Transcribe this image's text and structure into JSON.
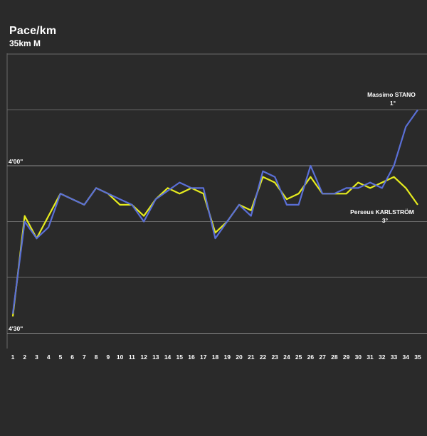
{
  "header": {
    "title": "Pace/km",
    "subtitle": "35km M"
  },
  "colors": {
    "background": "#2a2a2a",
    "grid": "#6a6a6a",
    "stano": "#5a6fd6",
    "karlstrom": "#e6ec1e"
  },
  "chart_data": {
    "type": "line",
    "title": "Pace/km",
    "subtitle": "35km M",
    "x": [
      1,
      2,
      3,
      4,
      5,
      6,
      7,
      8,
      9,
      10,
      11,
      12,
      13,
      14,
      15,
      16,
      17,
      18,
      19,
      20,
      21,
      22,
      23,
      24,
      25,
      26,
      27,
      28,
      29,
      30,
      31,
      32,
      33,
      34,
      35
    ],
    "xlabel": "",
    "ylabel": "",
    "y_unit": "seconds per km",
    "ylim_seconds": [
      240,
      270
    ],
    "y_reversed": true,
    "ytick_labels": [
      {
        "value": 240,
        "label": "4'00\""
      },
      {
        "value": 270,
        "label": "4'30\""
      }
    ],
    "grid": true,
    "series": [
      {
        "name": "Massimo STANO",
        "annotation": "1°",
        "values": [
          266.5,
          250.0,
          253.0,
          251.0,
          245.0,
          246.0,
          247.0,
          244.0,
          245.0,
          246.0,
          247.0,
          250.0,
          246.0,
          244.5,
          243.0,
          244.0,
          244.0,
          253.0,
          250.0,
          247.0,
          249.0,
          241.0,
          242.0,
          247.0,
          247.0,
          240.0,
          245.0,
          245.0,
          244.0,
          244.0,
          243.0,
          244.0,
          240.0,
          233.0,
          230.0
        ]
      },
      {
        "name": "Perseus KARLSTRÖM",
        "annotation": "3°",
        "values": [
          267.0,
          249.0,
          253.0,
          249.0,
          245.0,
          246.0,
          247.0,
          244.0,
          245.0,
          247.0,
          247.0,
          249.0,
          246.0,
          244.0,
          245.0,
          244.0,
          245.0,
          252.0,
          250.0,
          247.0,
          248.0,
          242.0,
          243.0,
          246.0,
          245.0,
          242.0,
          245.0,
          245.0,
          245.0,
          243.0,
          244.0,
          243.0,
          242.0,
          244.0,
          247.0
        ]
      }
    ]
  }
}
